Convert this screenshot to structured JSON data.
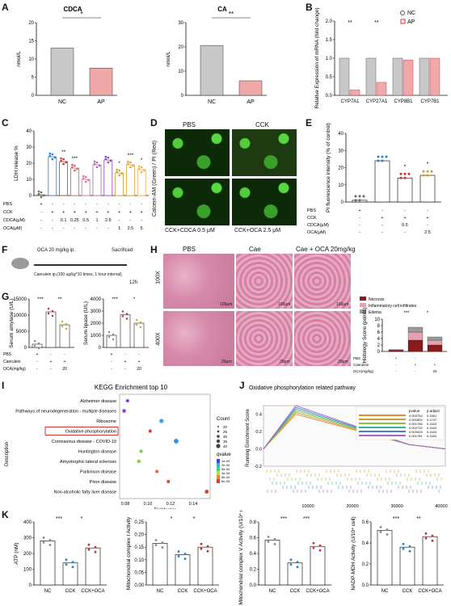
{
  "letters": [
    "A",
    "B",
    "C",
    "D",
    "E",
    "F",
    "G",
    "H",
    "I",
    "J",
    "K"
  ],
  "panelA": [
    {
      "title": "CDCA",
      "ylabel": "nmol/L",
      "ymax": 20,
      "ticks": [
        0,
        5,
        10,
        15,
        20
      ],
      "groups": [
        "NC",
        "AP"
      ],
      "means": [
        13,
        7.5
      ],
      "sig": "*"
    },
    {
      "title": "CA",
      "ylabel": "nmol/L",
      "ymax": 30,
      "ticks": [
        0,
        10,
        20,
        30
      ],
      "groups": [
        "NC",
        "AP"
      ],
      "means": [
        20.5,
        6
      ],
      "sig": "**"
    }
  ],
  "panelB": {
    "ylabel": "Relative Expression of mRNA (fold change)",
    "ymax": 2.0,
    "ticks": [
      "0.0",
      "0.5",
      "1.0",
      "1.5",
      "2.0"
    ],
    "genes": [
      "CYP7A1",
      "CYP27A1",
      "CYP8B1",
      "CYP7B1"
    ],
    "nc": [
      1.0,
      1.0,
      1.0,
      1.0
    ],
    "ap": [
      0.15,
      0.35,
      0.95,
      1.0
    ],
    "sig": [
      "**",
      "**",
      "",
      ""
    ],
    "legend": [
      "NC",
      "AP"
    ]
  },
  "panelC": {
    "ylabel": "LDH release %",
    "ymax": 40,
    "ticks": [
      0,
      10,
      20,
      30,
      40
    ],
    "values": [
      0.5,
      24,
      21,
      17,
      10,
      19,
      22,
      14,
      19,
      16
    ],
    "sig": [
      "",
      "",
      "**",
      "***",
      "",
      "",
      "",
      "*",
      "***",
      "*"
    ],
    "colors": [
      "#6b6b6b",
      "#2d7ec4",
      "#c0392b",
      "#d45f5f",
      "#e07090",
      "#a56bb8",
      "#8e44ad",
      "#c9a227",
      "#e0a030",
      "#f0b040"
    ],
    "rows": [
      {
        "label": "PBS",
        "vals": [
          "+",
          "-",
          "-",
          "-",
          "-",
          "-",
          "-",
          "-",
          "-",
          "-"
        ]
      },
      {
        "label": "CCK",
        "vals": [
          "-",
          "+",
          "+",
          "+",
          "+",
          "+",
          "+",
          "+",
          "+",
          "+"
        ]
      },
      {
        "label": "CDCA(μM)",
        "vals": [
          "-",
          "-",
          "0.1",
          "0.25",
          "0.5",
          "1",
          "2.5",
          "-",
          "-",
          "-"
        ]
      },
      {
        "label": "OCA(μM)",
        "vals": [
          "-",
          "-",
          "-",
          "-",
          "-",
          "-",
          "-",
          "1",
          "2.5",
          "5"
        ]
      }
    ]
  },
  "panelD": {
    "ylabel": "Calcein-AM (Green) / PI (Red)",
    "cols": [
      "PBS",
      "CCK"
    ],
    "bottom": [
      "CCK+CDCA 0.5 μM",
      "CCK+OCA 2.5 μM"
    ]
  },
  "panelE": {
    "ylabel": "PI fluorescence intensity (% of control)",
    "ymax": 40,
    "ticks": [
      0,
      10,
      20,
      30,
      40
    ],
    "values": [
      1,
      24,
      14,
      15.5
    ],
    "sig": [
      "",
      "",
      "*",
      "*"
    ],
    "rows": [
      {
        "label": "PBS",
        "vals": [
          "+",
          "-",
          "-",
          "-"
        ]
      },
      {
        "label": "CCK",
        "vals": [
          "-",
          "+",
          "+",
          "+"
        ]
      },
      {
        "label": "CDCA(μM)",
        "vals": [
          "-",
          "-",
          "0.5",
          "-"
        ]
      },
      {
        "label": "OCA(μM)",
        "vals": [
          "-",
          "-",
          "-",
          "2.5"
        ]
      }
    ]
  },
  "panelF": {
    "top": "OCA  20 mg/kg  ip.",
    "end": "Sacrificed",
    "bottom": "Caerulein ip.(100 ug/kg*10 times, 1 hour interval)",
    "time": "12h"
  },
  "panelG": [
    {
      "ylabel": "Serum amylase (U/L)",
      "ymax": 15000,
      "ticks": [
        0,
        5000,
        10000,
        15000
      ],
      "means": [
        1000,
        11000,
        7000
      ],
      "sig": [
        "***",
        "**"
      ]
    },
    {
      "ylabel": "Serum lipase (U/L)",
      "ymax": 4000,
      "ticks": [
        0,
        1000,
        2000,
        3000,
        4000
      ],
      "means": [
        1000,
        2700,
        2000
      ],
      "sig": [
        "***",
        "*"
      ]
    }
  ],
  "panelGrows": [
    {
      "label": "PBS",
      "vals": [
        "+",
        "-",
        "-"
      ]
    },
    {
      "label": "Caerulein",
      "vals": [
        "-",
        "+",
        "+"
      ]
    },
    {
      "label": "OCA(mg/kg)",
      "vals": [
        "-",
        "-",
        "20"
      ]
    }
  ],
  "panelH": {
    "cols": [
      "PBS",
      "Cae",
      "Cae + OCA 20mg/kg"
    ],
    "rows": [
      "100X",
      "400X"
    ],
    "scales": [
      "100μm",
      "100μm",
      "100μm",
      "20μm",
      "20μm",
      "20μm"
    ],
    "legend": [
      "Necrosis",
      "Inflammatory cell infiltrates",
      "Edema"
    ],
    "legendColors": [
      "#8b1a1a",
      "#e8a0b0",
      "#9a9a9a"
    ],
    "ylabel": "Histology Score (points)",
    "ticks": [
      0,
      2,
      4,
      6,
      8,
      10
    ],
    "stack": [
      [
        0.3,
        0.1,
        0.2
      ],
      [
        3.5,
        2.5,
        1.5
      ],
      [
        2.0,
        1.5,
        1.0
      ]
    ],
    "sig": [
      "***",
      "*"
    ],
    "tableRows": [
      {
        "label": "PBS",
        "vals": [
          "+",
          "-",
          "-"
        ]
      },
      {
        "label": "Caerulein",
        "vals": [
          "-",
          "+",
          "+"
        ]
      },
      {
        "label": "OCA(mg/kg)",
        "vals": [
          "-",
          "-",
          "20"
        ]
      }
    ]
  },
  "panelI": {
    "title": "KEGG Enrichment top 10",
    "ylabel": "Description",
    "xlabel": "Richfactor",
    "xticks": [
      "0.08",
      "0.10",
      "0.12",
      "0.14"
    ],
    "terms": [
      "Alzheimer disease",
      "Pathways of neurodegeneration - multiple diseases",
      "Ribosome",
      "Oxidative phosphorylation",
      "Coronavirus disease - COVID-19",
      "Huntington disease",
      "Amyotrophic lateral sclerosis",
      "Parkinson disease",
      "Prion disease",
      "Non-alcoholic fatty liver disease"
    ],
    "x": [
      0.082,
      0.079,
      0.112,
      0.102,
      0.125,
      0.094,
      0.092,
      0.108,
      0.118,
      0.152
    ],
    "size": [
      20,
      25,
      35,
      20,
      40,
      20,
      25,
      20,
      20,
      30
    ],
    "color": [
      "#7c3fdc",
      "#8a3fd0",
      "#3aa7d8",
      "#d23d3d",
      "#2f8fd8",
      "#6fce4a",
      "#8bd24a",
      "#e0692f",
      "#e24430",
      "#c8502f"
    ],
    "highlight": "Oxidative phosphorylation",
    "legendCount": [
      "20",
      "25",
      "30",
      "35",
      "40"
    ],
    "legendQ": [
      "1e-04",
      "2e-04",
      "3e-04",
      "4e-04",
      "5e-04",
      "6e-04"
    ],
    "countLabel": "Count",
    "qLabel": "qvalue"
  },
  "panelJ": {
    "title": "Oxidative phosphorylation related pathway",
    "ylabel": "Running Enrichment Score",
    "xticks": [
      "10000",
      "20000",
      "30000",
      "40000"
    ],
    "yticks": [
      "-0.2",
      "0.0",
      "0.2",
      "0.4"
    ],
    "tableHead": [
      "pvalue",
      "p.adjust"
    ],
    "tableRows": [
      [
        "0.003754",
        "0.1561"
      ],
      [
        "0.001800",
        "0.1747"
      ],
      [
        "0.001785",
        "0.1163"
      ],
      [
        "0.002732",
        "0.1163"
      ],
      [
        "0.003403",
        "0.1163"
      ],
      [
        "0.001781",
        "0.1163"
      ]
    ],
    "legendColors": [
      "#e08a3a",
      "#c8a030",
      "#8fbf40",
      "#3ab0a0",
      "#4a7fd0",
      "#b060c0"
    ]
  },
  "panelK": [
    {
      "ylabel": "ATP (nM)",
      "ymax": 400,
      "ticks": [
        0,
        100,
        200,
        300,
        400
      ],
      "means": [
        280,
        140,
        235
      ],
      "sig": [
        "***",
        "*"
      ]
    },
    {
      "ylabel": "Mitochondrial complex I Activity",
      "ymax": 0.25,
      "ticks": [
        "0.00",
        "0.05",
        "0.10",
        "0.15",
        "0.20",
        "0.25"
      ],
      "means": [
        0.165,
        0.12,
        0.15
      ],
      "sig": [
        "*",
        "*"
      ]
    },
    {
      "ylabel": "Mitochondrial complex V Activity (U/10⁴ cell)",
      "ymax": 0.8,
      "ticks": [
        "0.0",
        "0.2",
        "0.4",
        "0.6",
        "0.8"
      ],
      "means": [
        0.57,
        0.28,
        0.49
      ],
      "sig": [
        "***",
        "***"
      ]
    },
    {
      "ylabel": "NADP-MDH Activity (U/10⁴ cell)",
      "ymax": 0.6,
      "ticks": [
        "0.0",
        "0.2",
        "0.4",
        "0.6"
      ],
      "means": [
        0.52,
        0.36,
        0.46
      ],
      "sig": [
        "***",
        "**"
      ]
    }
  ],
  "panelKgroups": [
    "NC",
    "CCK",
    "CCK+OCA"
  ]
}
